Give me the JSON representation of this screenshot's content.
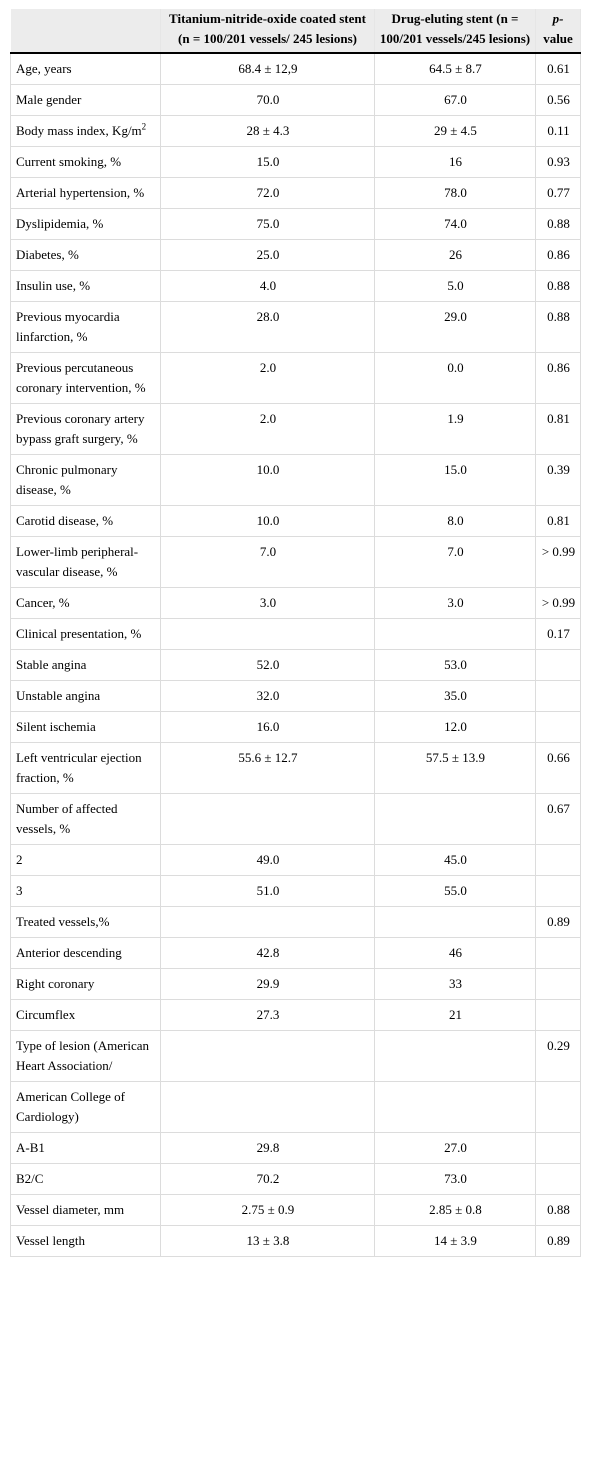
{
  "header": {
    "col_label": "",
    "col_tin": "Titanium-nitride-oxide coated stent (n = 100/201 vessels/ 245 lesions)",
    "col_des": "Drug-eluting stent (n = 100/201 vessels/245 lesions)",
    "col_p_italic": "p-",
    "col_p_rest": "value"
  },
  "rows": [
    {
      "label": "Age, years",
      "tin": "68.4 ± 12,9",
      "des": "64.5 ± 8.7",
      "p": "0.61"
    },
    {
      "label": "Male gender",
      "tin": "70.0",
      "des": "67.0",
      "p": "0.56"
    },
    {
      "label": "Body mass index, Kg/m",
      "sup": "2",
      "tin": "28 ± 4.3",
      "des": "29 ± 4.5",
      "p": "0.11"
    },
    {
      "label": "Current smoking, %",
      "tin": "15.0",
      "des": "16",
      "p": "0.93"
    },
    {
      "label": "Arterial hypertension, %",
      "tin": "72.0",
      "des": "78.0",
      "p": "0.77"
    },
    {
      "label": "Dyslipidemia, %",
      "tin": "75.0",
      "des": "74.0",
      "p": "0.88"
    },
    {
      "label": "Diabetes, %",
      "tin": "25.0",
      "des": "26",
      "p": "0.86"
    },
    {
      "label": "Insulin use, %",
      "tin": "4.0",
      "des": "5.0",
      "p": "0.88"
    },
    {
      "label": "Previous myocardia linfarction, %",
      "tin": "28.0",
      "des": "29.0",
      "p": "0.88"
    },
    {
      "label": "Previous percutaneous coronary intervention, %",
      "tin": "2.0",
      "des": "0.0",
      "p": "0.86"
    },
    {
      "label": "Previous coronary artery bypass graft surgery, %",
      "tin": "2.0",
      "des": "1.9",
      "p": "0.81"
    },
    {
      "label": "Chronic pulmonary disease, %",
      "tin": "10.0",
      "des": "15.0",
      "p": "0.39"
    },
    {
      "label": "Carotid disease, %",
      "tin": "10.0",
      "des": "8.0",
      "p": "0.81"
    },
    {
      "label": "Lower-limb peripheral-vascular disease, %",
      "tin": "7.0",
      "des": "7.0",
      "p": "> 0.99"
    },
    {
      "label": "Cancer, %",
      "tin": "3.0",
      "des": "3.0",
      "p": "> 0.99"
    },
    {
      "label": "Clinical presentation, %",
      "tin": "",
      "des": "",
      "p": "0.17"
    },
    {
      "label": "Stable angina",
      "tin": "52.0",
      "des": "53.0",
      "p": ""
    },
    {
      "label": "Unstable angina",
      "tin": "32.0",
      "des": "35.0",
      "p": ""
    },
    {
      "label": "Silent ischemia",
      "tin": "16.0",
      "des": "12.0",
      "p": ""
    },
    {
      "label": "Left ventricular ejection fraction, %",
      "tin": "55.6 ± 12.7",
      "des": "57.5 ± 13.9",
      "p": "0.66"
    },
    {
      "label": "Number of affected vessels, %",
      "tin": "",
      "des": "",
      "p": "0.67"
    },
    {
      "label": "2",
      "tin": "49.0",
      "des": "45.0",
      "p": ""
    },
    {
      "label": "3",
      "tin": "51.0",
      "des": "55.0",
      "p": ""
    },
    {
      "label": "Treated vessels,%",
      "tin": "",
      "des": "",
      "p": "0.89"
    },
    {
      "label": "Anterior descending",
      "tin": "42.8",
      "des": "46",
      "p": ""
    },
    {
      "label": "Right coronary",
      "tin": "29.9",
      "des": "33",
      "p": ""
    },
    {
      "label": "Circumflex",
      "tin": "27.3",
      "des": "21",
      "p": ""
    },
    {
      "label": "Type of lesion (American Heart Association/",
      "tin": "",
      "des": "",
      "p": "0.29"
    },
    {
      "label": "American College of Cardiology)",
      "tin": "",
      "des": "",
      "p": ""
    },
    {
      "label": "A-B1",
      "tin": "29.8",
      "des": "27.0",
      "p": ""
    },
    {
      "label": "B2/C",
      "tin": "70.2",
      "des": "73.0",
      "p": ""
    },
    {
      "label": "Vessel diameter, mm",
      "tin": "2.75 ± 0.9",
      "des": "2.85 ± 0.8",
      "p": "0.88"
    },
    {
      "label": "Vessel length",
      "tin": "13 ± 3.8",
      "des": "14 ± 3.9",
      "p": "0.89"
    }
  ]
}
